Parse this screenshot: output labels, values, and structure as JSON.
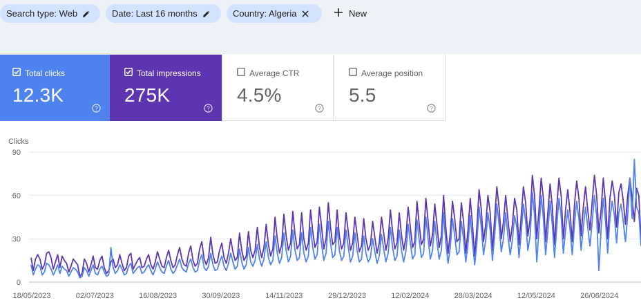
{
  "filters": {
    "chips": [
      {
        "label": "Search type: Web",
        "action": "edit"
      },
      {
        "label": "Date: Last 16 months",
        "action": "edit"
      },
      {
        "label": "Country: Algeria",
        "action": "close"
      }
    ],
    "new_label": "New"
  },
  "metrics": [
    {
      "label": "Total clicks",
      "value": "12.3K",
      "checked": true,
      "color": "#4e82ee"
    },
    {
      "label": "Total impressions",
      "value": "275K",
      "checked": true,
      "color": "#5e35b1"
    },
    {
      "label": "Average CTR",
      "value": "4.5%",
      "checked": false,
      "color": "#ffffff"
    },
    {
      "label": "Average position",
      "value": "5.5",
      "checked": false,
      "color": "#ffffff"
    }
  ],
  "chart_data": {
    "type": "line",
    "ylabel": "Clicks",
    "yticks": [
      "90",
      "60",
      "30",
      "0"
    ],
    "ylim": [
      0,
      90
    ],
    "xticks": [
      "18/05/2023",
      "02/07/2023",
      "16/08/2023",
      "30/09/2023",
      "14/11/2023",
      "29/12/2023",
      "12/02/2024",
      "28/03/2024",
      "12/05/2024",
      "26/06/2024"
    ],
    "grid": true,
    "series": [
      {
        "name": "Total impressions",
        "color": "#5e35b1",
        "values": [
          17,
          8,
          16,
          19,
          16,
          9,
          12,
          20,
          21,
          17,
          9,
          14,
          19,
          10,
          18,
          15,
          13,
          7,
          11,
          16,
          14,
          12,
          4,
          6,
          16,
          13,
          7,
          12,
          18,
          10,
          9,
          15,
          18,
          10,
          6,
          8,
          14,
          16,
          10,
          12,
          19,
          13,
          8,
          10,
          18,
          20,
          9,
          12,
          15,
          17,
          10,
          11,
          16,
          19,
          12,
          9,
          14,
          21,
          16,
          11,
          10,
          17,
          22,
          15,
          10,
          12,
          19,
          24,
          16,
          12,
          11,
          20,
          25,
          15,
          11,
          13,
          23,
          28,
          16,
          12,
          17,
          31,
          19,
          13,
          14,
          22,
          27,
          17,
          13,
          20,
          30,
          21,
          15,
          17,
          34,
          22,
          15,
          18,
          35,
          22,
          17,
          22,
          38,
          24,
          17,
          24,
          40,
          26,
          18,
          23,
          45,
          30,
          20,
          26,
          47,
          32,
          22,
          27,
          49,
          33,
          23,
          26,
          48,
          30,
          22,
          27,
          50,
          35,
          24,
          28,
          52,
          38,
          23,
          30,
          55,
          38,
          26,
          28,
          50,
          32,
          23,
          27,
          48,
          35,
          22,
          27,
          45,
          33,
          21,
          25,
          44,
          30,
          22,
          26,
          42,
          31,
          20,
          27,
          45,
          34,
          22,
          30,
          50,
          35,
          23,
          27,
          48,
          33,
          22,
          31,
          52,
          38,
          24,
          28,
          56,
          40,
          26,
          30,
          58,
          42,
          25,
          33,
          54,
          40,
          24,
          32,
          60,
          38,
          20,
          34,
          56,
          44,
          28,
          30,
          55,
          42,
          20,
          36,
          58,
          40,
          18,
          38,
          64,
          50,
          28,
          40,
          60,
          48,
          22,
          44,
          66,
          52,
          30,
          42,
          60,
          44,
          28,
          40,
          58,
          50,
          26,
          46,
          66,
          55,
          32,
          44,
          74,
          60,
          30,
          50,
          72,
          58,
          28,
          48,
          68,
          52,
          26,
          52,
          72,
          60,
          30,
          50,
          64,
          48,
          28,
          54,
          70,
          58,
          32,
          52,
          66,
          50,
          36,
          56,
          74,
          60,
          34,
          50,
          72,
          55,
          30,
          58,
          70,
          60,
          38,
          62,
          68,
          56,
          40,
          60,
          72,
          58,
          42,
          65,
          60,
          30
        ]
      },
      {
        "name": "Total clicks",
        "color": "#4e82ee",
        "values": [
          12,
          5,
          9,
          12,
          11,
          5,
          7,
          13,
          12,
          9,
          5,
          8,
          12,
          6,
          11,
          9,
          8,
          4,
          7,
          10,
          9,
          7,
          3,
          4,
          10,
          8,
          4,
          8,
          12,
          6,
          5,
          9,
          11,
          7,
          4,
          5,
          24,
          10,
          6,
          8,
          12,
          9,
          5,
          6,
          11,
          13,
          6,
          8,
          10,
          11,
          6,
          7,
          10,
          12,
          8,
          5,
          9,
          14,
          10,
          7,
          6,
          11,
          15,
          9,
          6,
          8,
          12,
          16,
          10,
          8,
          7,
          13,
          16,
          10,
          7,
          8,
          15,
          19,
          10,
          8,
          11,
          20,
          12,
          8,
          9,
          14,
          18,
          11,
          8,
          13,
          20,
          14,
          9,
          11,
          23,
          14,
          9,
          12,
          24,
          14,
          11,
          15,
          26,
          16,
          11,
          16,
          28,
          17,
          12,
          15,
          32,
          20,
          13,
          17,
          34,
          22,
          14,
          18,
          36,
          22,
          15,
          17,
          34,
          20,
          14,
          18,
          38,
          24,
          16,
          19,
          40,
          26,
          15,
          20,
          42,
          27,
          17,
          19,
          38,
          22,
          15,
          18,
          36,
          24,
          14,
          18,
          34,
          22,
          14,
          16,
          32,
          20,
          14,
          17,
          30,
          21,
          13,
          18,
          33,
          23,
          14,
          20,
          38,
          24,
          15,
          18,
          36,
          22,
          14,
          21,
          40,
          27,
          16,
          19,
          43,
          29,
          17,
          20,
          45,
          30,
          16,
          22,
          42,
          28,
          16,
          22,
          48,
          27,
          13,
          24,
          44,
          32,
          19,
          21,
          42,
          30,
          14,
          26,
          46,
          28,
          12,
          27,
          52,
          38,
          19,
          29,
          48,
          36,
          15,
          32,
          54,
          40,
          21,
          30,
          48,
          32,
          19,
          29,
          46,
          38,
          17,
          34,
          54,
          42,
          22,
          32,
          62,
          46,
          14,
          36,
          60,
          44,
          19,
          35,
          56,
          40,
          17,
          38,
          58,
          46,
          20,
          36,
          50,
          36,
          19,
          40,
          56,
          44,
          22,
          38,
          52,
          38,
          25,
          42,
          60,
          46,
          8,
          36,
          58,
          42,
          20,
          44,
          56,
          46,
          27,
          48,
          54,
          42,
          28,
          46,
          72,
          44,
          85,
          52,
          48,
          25
        ]
      }
    ]
  }
}
